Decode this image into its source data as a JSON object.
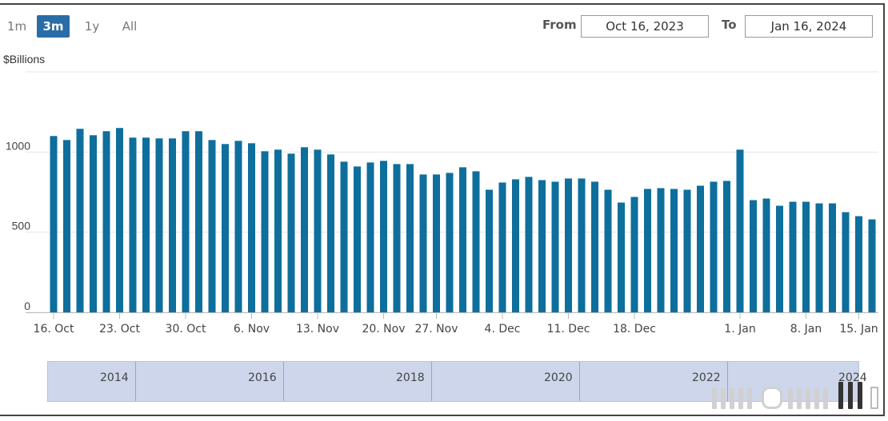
{
  "range_buttons": {
    "b1m": "1m",
    "b3m": "3m",
    "b1y": "1y",
    "ball": "All"
  },
  "date_range": {
    "from_label": "From",
    "from_value": "Oct 16, 2023",
    "to_label": "To",
    "to_value": "Jan 16, 2024"
  },
  "navigator": {
    "years": [
      "2014",
      "2016",
      "2018",
      "2020",
      "2022",
      "2024"
    ]
  },
  "colors": {
    "bar": "#0e6e9c",
    "active_button": "#2a6ca6",
    "navigator_bg": "#cdd6ea",
    "grid": "#e6e6e6"
  },
  "chart_data": {
    "type": "bar",
    "ylabel": "$Billions",
    "ylim": [
      0,
      1500
    ],
    "yticks": [
      0,
      500,
      1000
    ],
    "xtick_labels": [
      "16. Oct",
      "23. Oct",
      "30. Oct",
      "6. Nov",
      "13. Nov",
      "20. Nov",
      "27. Nov",
      "4. Dec",
      "11. Dec",
      "18. Dec",
      "1. Jan",
      "8. Jan",
      "15. Jan"
    ],
    "grid": true,
    "values": [
      1100,
      1075,
      1145,
      1105,
      1130,
      1150,
      1090,
      1090,
      1085,
      1085,
      1130,
      1130,
      1075,
      1050,
      1070,
      1055,
      1005,
      1015,
      990,
      1030,
      1015,
      985,
      940,
      910,
      935,
      945,
      925,
      925,
      860,
      860,
      870,
      905,
      880,
      765,
      810,
      830,
      845,
      825,
      815,
      835,
      835,
      815,
      765,
      685,
      720,
      770,
      775,
      770,
      765,
      790,
      815,
      820,
      1015,
      700,
      710,
      665,
      690,
      690,
      680,
      680,
      625,
      600,
      580
    ]
  }
}
